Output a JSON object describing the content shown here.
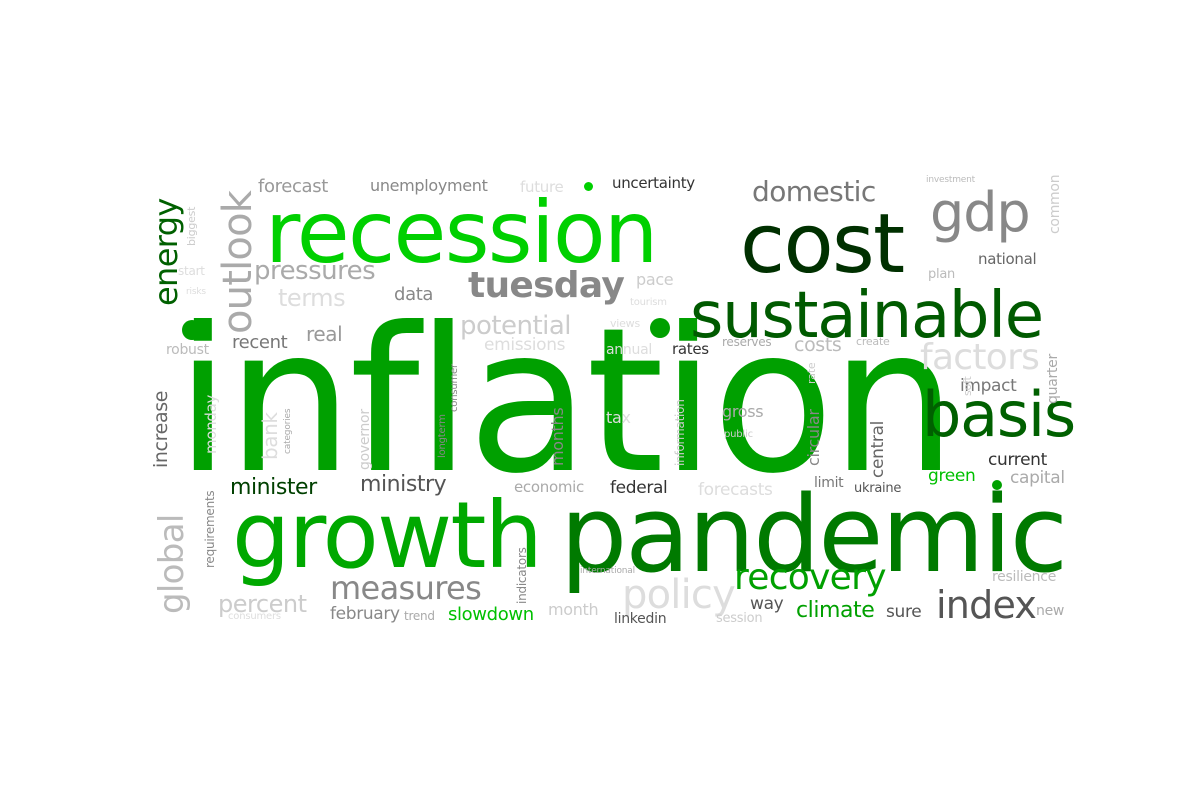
{
  "words": [
    {
      "id": "inflation",
      "text": "inflation",
      "color": "#00a000"
    },
    {
      "id": "pandemic",
      "text": "pandemic",
      "color": "#007a00"
    },
    {
      "id": "recession",
      "text": "recession",
      "color": "#00d000"
    },
    {
      "id": "growth",
      "text": "growth",
      "color": "#00a800"
    },
    {
      "id": "sustainable",
      "text": "sustainable",
      "color": "#005a00"
    },
    {
      "id": "cost",
      "text": "cost",
      "color": "#003000"
    },
    {
      "id": "basis",
      "text": "basis",
      "color": "#006000"
    },
    {
      "id": "gdp",
      "text": "gdp",
      "color": "#888888"
    },
    {
      "id": "index",
      "text": "index",
      "color": "#555555"
    },
    {
      "id": "recovery",
      "text": "recovery",
      "color": "#00a000"
    },
    {
      "id": "tuesday",
      "text": "tuesday",
      "color": "#888888"
    },
    {
      "id": "measures",
      "text": "measures",
      "color": "#888888"
    },
    {
      "id": "outlook",
      "text": "outlook",
      "color": "#aaaaaa"
    },
    {
      "id": "energy",
      "text": "energy",
      "color": "#006000"
    },
    {
      "id": "global",
      "text": "global",
      "color": "#bbbbbb"
    },
    {
      "id": "domestic",
      "text": "domestic",
      "color": "#777777"
    },
    {
      "id": "policy",
      "text": "policy",
      "color": "#dddddd"
    },
    {
      "id": "factors",
      "text": "factors",
      "color": "#dddddd"
    },
    {
      "id": "potential",
      "text": "potential",
      "color": "#cccccc"
    },
    {
      "id": "pressures",
      "text": "pressures",
      "color": "#aaaaaa"
    },
    {
      "id": "minister",
      "text": "minister",
      "color": "#004000"
    },
    {
      "id": "ministry",
      "text": "ministry",
      "color": "#555555"
    },
    {
      "id": "climate",
      "text": "climate",
      "color": "#00a000"
    },
    {
      "id": "percent",
      "text": "percent",
      "color": "#cccccc"
    },
    {
      "id": "terms",
      "text": "terms",
      "color": "#dddddd"
    },
    {
      "id": "forecast",
      "text": "forecast",
      "color": "#999999"
    },
    {
      "id": "unemployment",
      "text": "unemployment",
      "color": "#888888"
    },
    {
      "id": "future",
      "text": "future",
      "color": "#dddddd"
    },
    {
      "id": "uncertainty",
      "text": "uncertainty",
      "color": "#333333"
    },
    {
      "id": "data",
      "text": "data",
      "color": "#888888"
    },
    {
      "id": "real",
      "text": "real",
      "color": "#999999"
    },
    {
      "id": "recent",
      "text": "recent",
      "color": "#777777"
    },
    {
      "id": "robust",
      "text": "robust",
      "color": "#bbbbbb"
    },
    {
      "id": "emissions",
      "text": "emissions",
      "color": "#dddddd"
    },
    {
      "id": "annual",
      "text": "annual",
      "color": "#dddddd"
    },
    {
      "id": "rates",
      "text": "rates",
      "color": "#333333"
    },
    {
      "id": "reserves",
      "text": "reserves",
      "color": "#aaaaaa"
    },
    {
      "id": "costs",
      "text": "costs",
      "color": "#bbbbbb"
    },
    {
      "id": "create",
      "text": "create",
      "color": "#bbbbbb"
    },
    {
      "id": "pace",
      "text": "pace",
      "color": "#cccccc"
    },
    {
      "id": "views",
      "text": "views",
      "color": "#dddddd"
    },
    {
      "id": "tourism",
      "text": "tourism",
      "color": "#dddddd"
    },
    {
      "id": "impact",
      "text": "impact",
      "color": "#777777"
    },
    {
      "id": "current",
      "text": "current",
      "color": "#333333"
    },
    {
      "id": "capital",
      "text": "capital",
      "color": "#aaaaaa"
    },
    {
      "id": "green",
      "text": "green",
      "color": "#00c000"
    },
    {
      "id": "national",
      "text": "national",
      "color": "#666666"
    },
    {
      "id": "plan",
      "text": "plan",
      "color": "#bbbbbb"
    },
    {
      "id": "investment",
      "text": "investment",
      "color": "#bbbbbb"
    },
    {
      "id": "common",
      "text": "common",
      "color": "#cccccc"
    },
    {
      "id": "quarter",
      "text": "quarter",
      "color": "#aaaaaa"
    },
    {
      "id": "soft",
      "text": "soft",
      "color": "#cccccc"
    },
    {
      "id": "tax",
      "text": "tax",
      "color": "#dddddd"
    },
    {
      "id": "gross",
      "text": "gross",
      "color": "#aaaaaa"
    },
    {
      "id": "public",
      "text": "public",
      "color": "#cccccc"
    },
    {
      "id": "fiscal",
      "text": "fiscal",
      "color": "#888888"
    },
    {
      "id": "circular",
      "text": "circular",
      "color": "#888888"
    },
    {
      "id": "central",
      "text": "central",
      "color": "#666666"
    },
    {
      "id": "limit",
      "text": "limit",
      "color": "#777777"
    },
    {
      "id": "ukraine",
      "text": "ukraine",
      "color": "#555555"
    },
    {
      "id": "federal",
      "text": "federal",
      "color": "#333333"
    },
    {
      "id": "economic",
      "text": "economic",
      "color": "#aaaaaa"
    },
    {
      "id": "forecasts",
      "text": "forecasts",
      "color": "#dddddd"
    },
    {
      "id": "months",
      "text": "months",
      "color": "#888888"
    },
    {
      "id": "information",
      "text": "information",
      "color": "#cccccc"
    },
    {
      "id": "increase",
      "text": "increase",
      "color": "#666666"
    },
    {
      "id": "monday",
      "text": "monday",
      "color": "#dddddd"
    },
    {
      "id": "bank",
      "text": "bank",
      "color": "#dddddd"
    },
    {
      "id": "governor",
      "text": "governor",
      "color": "#cccccc"
    },
    {
      "id": "categories",
      "text": "categories",
      "color": "#aaaaaa"
    },
    {
      "id": "consumer",
      "text": "consumer",
      "color": "#888888"
    },
    {
      "id": "longterm",
      "text": "longterm",
      "color": "#888888"
    },
    {
      "id": "requirements",
      "text": "requirements",
      "color": "#888888"
    },
    {
      "id": "indicators",
      "text": "indicators",
      "color": "#888888"
    },
    {
      "id": "february",
      "text": "february",
      "color": "#888888"
    },
    {
      "id": "trend",
      "text": "trend",
      "color": "#aaaaaa"
    },
    {
      "id": "slowdown",
      "text": "slowdown",
      "color": "#00c000"
    },
    {
      "id": "month",
      "text": "month",
      "color": "#cccccc"
    },
    {
      "id": "linkedin",
      "text": "linkedin",
      "color": "#555555"
    },
    {
      "id": "session",
      "text": "session",
      "color": "#cccccc"
    },
    {
      "id": "way",
      "text": "way",
      "color": "#555555"
    },
    {
      "id": "sure",
      "text": "sure",
      "color": "#555555"
    },
    {
      "id": "new",
      "text": "new",
      "color": "#aaaaaa"
    },
    {
      "id": "resilience",
      "text": "resilience",
      "color": "#bbbbbb"
    },
    {
      "id": "international",
      "text": "international",
      "color": "#aaaaaa"
    },
    {
      "id": "consumers",
      "text": "consumers",
      "color": "#dddddd"
    },
    {
      "id": "biggest",
      "text": "biggest",
      "color": "#cccccc"
    },
    {
      "id": "start",
      "text": "start",
      "color": "#dddddd"
    },
    {
      "id": "risks",
      "text": "risks",
      "color": "#dddddd"
    },
    {
      "id": "rate",
      "text": "rate",
      "color": "#cccccc"
    }
  ]
}
